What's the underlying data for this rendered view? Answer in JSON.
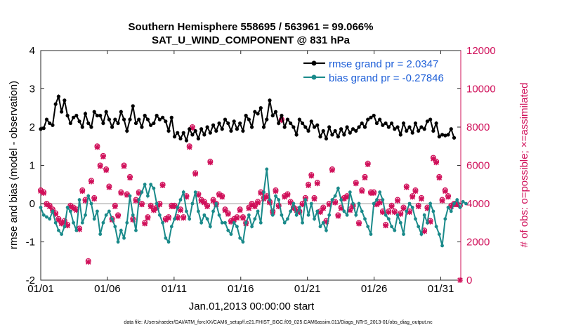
{
  "chart_data": {
    "type": "line",
    "title": "Southern Hemisphere 558695 / 563961 = 99.066%",
    "subtitle": "SAT_U_WIND_COMPONENT @ 831 hPa",
    "xlabel": "Jan.01,2013 00:00:00 start",
    "ylabel": "rmse and bias (model - observation)",
    "y2label": "# of obs: o=possible; ×=assimilated",
    "xlim": [
      0,
      31.5
    ],
    "ylim": [
      -2,
      4
    ],
    "y2lim": [
      0,
      12000
    ],
    "x_ticks": [
      0,
      5,
      10,
      15,
      20,
      25,
      30
    ],
    "x_tick_labels": [
      "01/01",
      "01/06",
      "01/11",
      "01/16",
      "01/21",
      "01/26",
      "01/31"
    ],
    "y_ticks": [
      -2,
      -1,
      0,
      1,
      2,
      3,
      4
    ],
    "y2_ticks": [
      0,
      2000,
      4000,
      6000,
      8000,
      10000,
      12000
    ],
    "colors": {
      "rmse": "#000000",
      "bias": "#1a8a8a",
      "obs": "#d0105a",
      "zero": "#bfbfbf",
      "legend_text": "#1e5fd8"
    },
    "series": [
      {
        "name": "rmse grand pr = 2.0347",
        "axis": "left",
        "values": [
          1.95,
          1.97,
          2.2,
          2.1,
          2.05,
          2.6,
          2.8,
          2.4,
          2.7,
          2.3,
          2.1,
          2.25,
          2.3,
          2.15,
          2.0,
          2.35,
          2.1,
          2.0,
          2.4,
          2.3,
          2.3,
          2.1,
          2.4,
          2.2,
          2.0,
          2.2,
          2.1,
          2.4,
          2.2,
          1.9,
          2.2,
          2.55,
          2.1,
          2.2,
          2.0,
          2.3,
          2.2,
          2.05,
          2.1,
          2.3,
          2.2,
          2.25,
          2.15,
          1.9,
          2.25,
          1.75,
          1.85,
          1.7,
          1.85,
          1.65,
          1.95,
          1.8,
          1.9,
          1.7,
          1.95,
          1.8,
          2.0,
          1.85,
          2.05,
          1.9,
          2.1,
          1.95,
          2.2,
          2.1,
          1.9,
          2.15,
          1.95,
          2.1,
          1.9,
          2.3,
          2.2,
          2.0,
          2.4,
          2.35,
          2.5,
          2.0,
          2.2,
          2.7,
          2.3,
          2.4,
          2.1,
          2.3,
          2.0,
          2.2,
          2.1,
          2.0,
          1.8,
          2.2,
          2.1,
          2.0,
          1.9,
          2.15,
          2.0,
          2.05,
          1.75,
          1.9,
          1.7,
          2.0,
          1.8,
          1.9,
          1.75,
          1.95,
          1.8,
          2.0,
          1.85,
          1.95,
          1.9,
          2.0,
          2.1,
          2.0,
          2.2,
          2.25,
          2.3,
          2.1,
          2.2,
          2.05,
          2.1,
          2.0,
          2.1,
          1.95,
          2.0,
          1.8,
          2.1,
          1.9,
          2.0,
          1.85,
          2.1,
          1.9,
          2.0,
          1.95,
          2.15,
          2.2,
          1.9,
          2.1,
          1.75,
          1.8,
          1.78,
          1.8,
          1.95,
          1.72
        ]
      },
      {
        "name": "bias grand pr = -0.27846",
        "axis": "left",
        "values": [
          -0.1,
          -0.3,
          -0.35,
          -0.4,
          -0.2,
          -0.5,
          -0.7,
          -0.8,
          -0.6,
          -0.1,
          -0.2,
          -0.5,
          -0.7,
          0.1,
          -0.5,
          -0.3,
          0.2,
          0.0,
          -0.4,
          -0.2,
          -0.8,
          -0.5,
          -0.3,
          -0.2,
          -0.4,
          -0.6,
          -1.0,
          -0.7,
          -0.9,
          -0.5,
          0.2,
          -0.3,
          -0.7,
          0.1,
          0.3,
          0.5,
          0.2,
          0.5,
          0.4,
          0.0,
          -0.3,
          -0.5,
          -0.9,
          -1.0,
          -0.6,
          -0.4,
          -0.1,
          0.1,
          0.3,
          -0.2,
          -0.4,
          0.0,
          0.3,
          -0.2,
          -0.5,
          -0.3,
          -0.4,
          -0.6,
          -0.2,
          0.0,
          -0.3,
          -0.5,
          -0.5,
          -0.7,
          -0.8,
          -0.5,
          -0.6,
          -0.9,
          -1.0,
          -0.5,
          -0.3,
          -0.6,
          -0.4,
          -0.2,
          -0.5,
          0.3,
          0.9,
          0.1,
          -0.3,
          0.2,
          0.1,
          -0.3,
          -0.5,
          -0.4,
          -0.2,
          0.0,
          -0.3,
          -0.1,
          -0.5,
          0.1,
          -0.3,
          0.0,
          -0.4,
          -0.2,
          -0.6,
          -0.5,
          -0.7,
          -0.3,
          0.1,
          0.2,
          0.4,
          0.1,
          -0.2,
          -0.3,
          0.3,
          0.0,
          -0.3,
          0.0,
          -0.2,
          -0.4,
          -0.6,
          -0.8,
          0.0,
          0.1,
          0.3,
          0.1,
          -0.3,
          -0.4,
          -0.6,
          -0.7,
          -0.3,
          -0.5,
          -0.8,
          -0.2,
          0.0,
          -0.1,
          -0.4,
          -0.6,
          -0.8,
          -0.3,
          -0.5,
          0.0,
          -0.2,
          -0.6,
          -0.8,
          -1.1,
          -0.4,
          -0.1,
          -0.2,
          0.0,
          0.1,
          -0.1,
          0.05,
          0.0
        ]
      },
      {
        "name": "obs possible",
        "axis": "right",
        "marker": "o",
        "values": [
          4700,
          4600,
          4000,
          3900,
          3700,
          3500,
          3200,
          3000,
          3100,
          2900,
          3900,
          3800,
          3700,
          2700,
          4700,
          4200,
          1000,
          5200,
          4300,
          7000,
          6000,
          6500,
          5800,
          4900,
          3200,
          3900,
          3400,
          4600,
          6000,
          4500,
          5400,
          3200,
          4200,
          4600,
          4000,
          3000,
          3300,
          3900,
          3700,
          3800,
          4000,
          5000,
          3200,
          3300,
          3900,
          3900,
          3300,
          3700,
          3300,
          4400,
          7000,
          8000,
          5600,
          4500,
          4200,
          4100,
          3900,
          6200,
          4200,
          4000,
          4500,
          4400,
          3700,
          3500,
          3100,
          3200,
          3300,
          3700,
          3300,
          3000,
          3800,
          4000,
          3900,
          4100,
          4600,
          4300,
          4400,
          4100,
          3600,
          4700,
          3900,
          8400,
          4400,
          4500,
          4100,
          3800,
          3700,
          3600,
          4000,
          4300,
          5000,
          5500,
          4300,
          5100,
          3600,
          3800,
          3100,
          4000,
          5800,
          4100,
          3400,
          3800,
          4300,
          4400,
          3700,
          3900,
          5100,
          3000,
          4700,
          5400,
          6100,
          4600,
          4600,
          4000,
          4100,
          3600,
          2900,
          3600,
          3900,
          3600,
          4200,
          3500,
          3800,
          4900,
          3600,
          4400,
          4700,
          3900,
          4300,
          2600,
          3800,
          3100,
          6400,
          6200,
          5400,
          4200,
          4700,
          4400,
          3900,
          4000,
          4000,
          3900
        ]
      },
      {
        "name": "obs assimilated",
        "axis": "right",
        "marker": "x",
        "values": [
          4650,
          4550,
          3950,
          3850,
          3650,
          3450,
          3150,
          2950,
          3050,
          2850,
          3850,
          3750,
          3650,
          2650,
          4650,
          4150,
          950,
          5150,
          4250,
          6950,
          5950,
          6450,
          5750,
          4850,
          3150,
          3850,
          3350,
          4550,
          5950,
          4450,
          5350,
          3150,
          4150,
          4550,
          3950,
          2950,
          3250,
          3850,
          3650,
          3750,
          3950,
          4950,
          3150,
          3250,
          3850,
          3850,
          3250,
          3650,
          3250,
          4350,
          6950,
          7950,
          5550,
          4450,
          4150,
          4050,
          3850,
          6150,
          4150,
          3950,
          4450,
          4350,
          3650,
          3450,
          3050,
          3150,
          3250,
          3650,
          3250,
          2950,
          3750,
          3950,
          3850,
          4050,
          4550,
          4250,
          4350,
          4050,
          3550,
          4650,
          3850,
          8350,
          4350,
          4450,
          4050,
          3750,
          3650,
          3550,
          3950,
          4250,
          4950,
          5450,
          4250,
          5050,
          3550,
          3750,
          3050,
          3950,
          5750,
          4050,
          3350,
          3750,
          4250,
          4350,
          3650,
          3850,
          5050,
          2950,
          4650,
          5350,
          6050,
          4550,
          4550,
          3950,
          4050,
          3550,
          2850,
          3550,
          3850,
          3550,
          4150,
          3450,
          3750,
          4850,
          3550,
          4350,
          4650,
          3850,
          4250,
          2550,
          3750,
          3050,
          6350,
          6150,
          5350,
          4150,
          4650,
          4350,
          3850,
          3950,
          3950,
          0
        ]
      }
    ],
    "legend": {
      "position": "top-right",
      "entries": [
        "rmse grand pr = 2.0347",
        "bias grand pr = -0.27846"
      ]
    }
  },
  "footer": "data file: /Users/raeder/DAI/ATM_forcXX/CAM6_setup/f.e21.FHIST_BGC.f09_025.CAM6assim.011/Diags_NTrS_2013-01/obs_diag_output.nc"
}
